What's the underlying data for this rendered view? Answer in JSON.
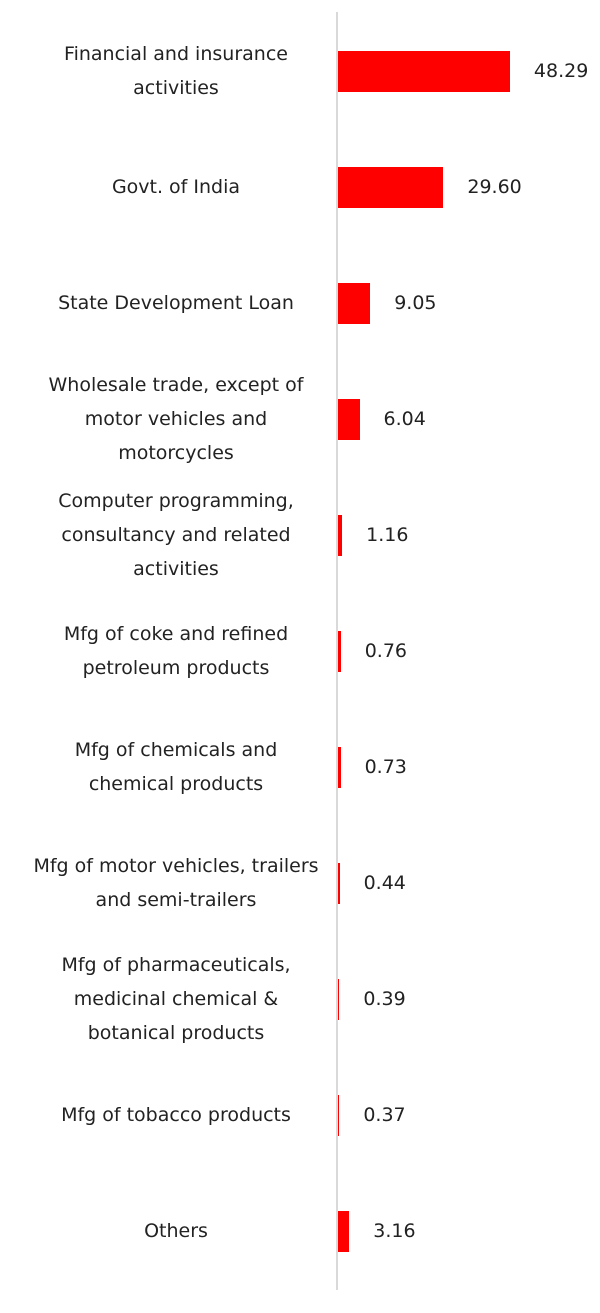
{
  "chart_data": {
    "type": "barh",
    "categories": [
      "Financial and insurance activities",
      "Govt. of India",
      "State Development Loan",
      "Wholesale trade, except of motor vehicles and motorcycles",
      "Computer programming, consultancy and related activities",
      "Mfg of coke and refined petroleum products",
      "Mfg of chemicals and chemical products",
      "Mfg of motor vehicles, trailers and semi-trailers",
      "Mfg of pharmaceuticals, medicinal chemical & botanical products",
      "Mfg of tobacco products",
      "Others"
    ],
    "values": [
      48.29,
      29.6,
      9.05,
      6.04,
      1.16,
      0.76,
      0.73,
      0.44,
      0.39,
      0.37,
      3.16
    ],
    "value_labels": [
      "48.29",
      "29.60",
      "9.05",
      "6.04",
      "1.16",
      "0.76",
      "0.73",
      "0.44",
      "0.39",
      "0.37",
      "3.16"
    ],
    "color": "#ff0000"
  }
}
